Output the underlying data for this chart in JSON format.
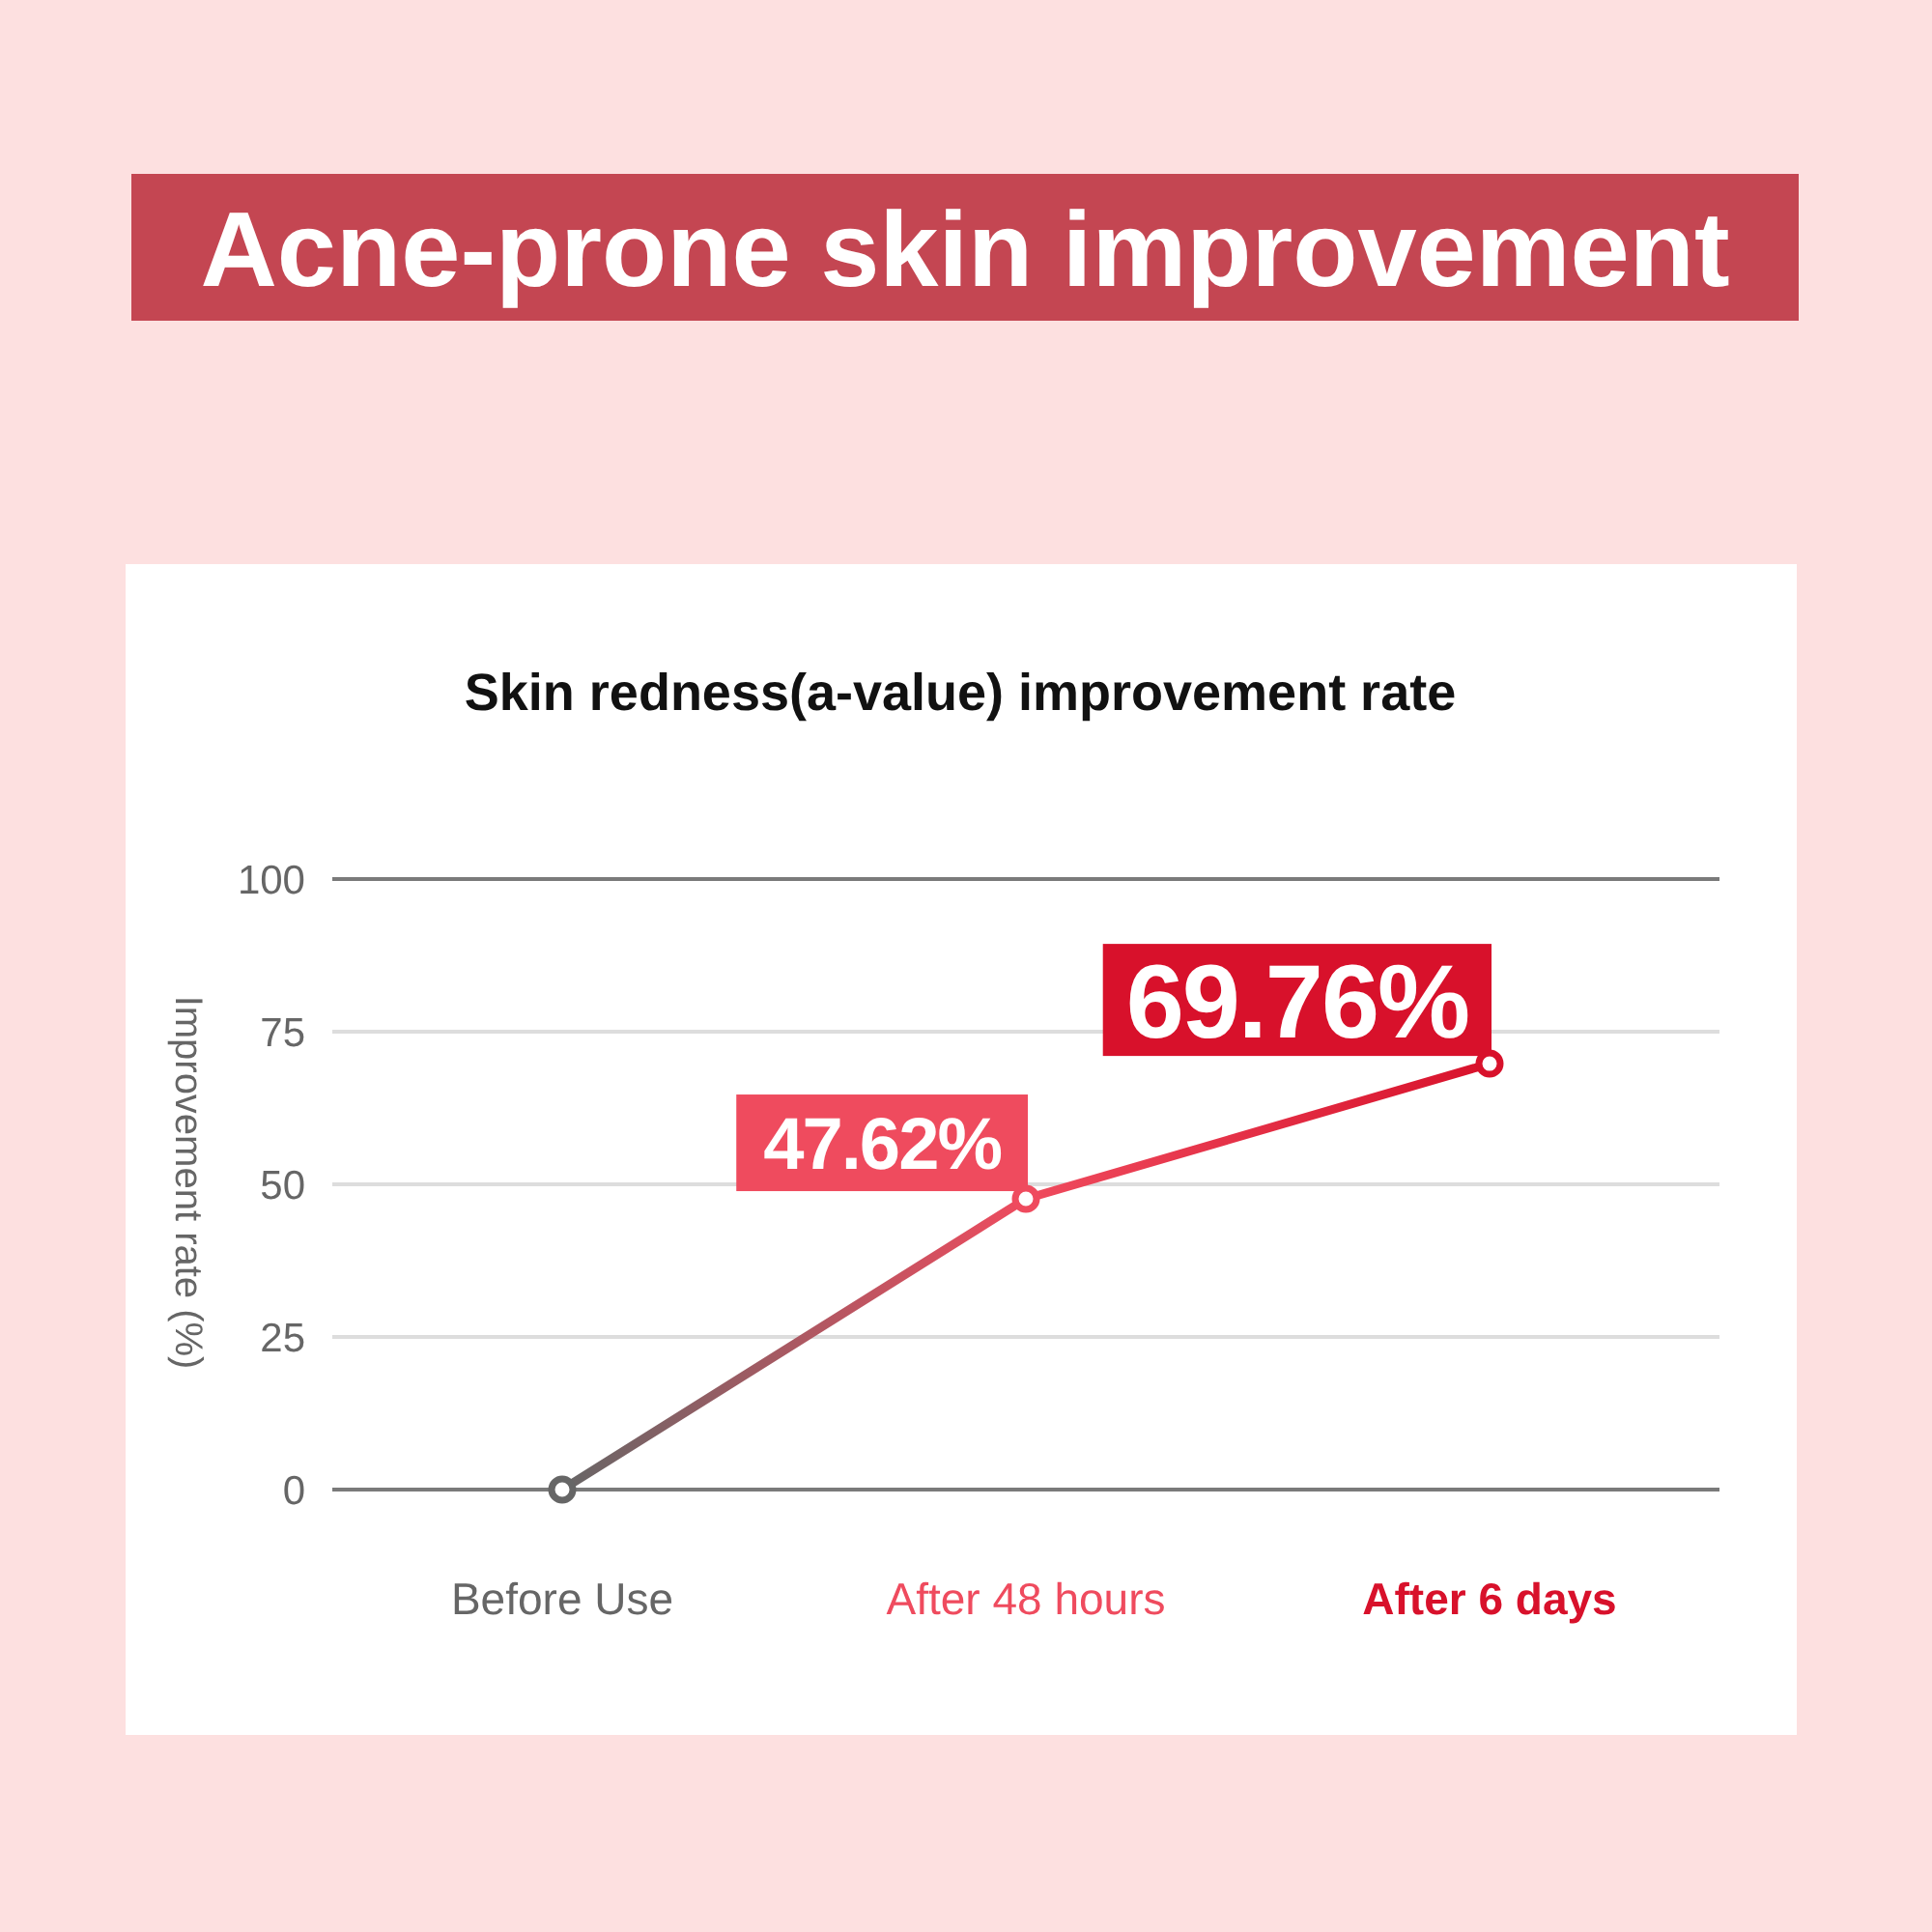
{
  "chart_data": {
    "type": "line",
    "title": "Acne-prone skin improvement",
    "subtitle": "Skin redness(a-value) improvement rate",
    "ylabel": "Improvement rate (%)",
    "categories": [
      "Before Use",
      "After 48 hours",
      "After 6 days"
    ],
    "values": [
      0,
      47.62,
      69.76
    ],
    "colors": [
      "#666666",
      "#ef4b5e",
      "#d8112b"
    ],
    "value_labels": [
      null,
      "47.62%",
      "69.76%"
    ],
    "ylim": [
      0,
      100
    ],
    "yticks": [
      0,
      25,
      50,
      75,
      100
    ],
    "grid": "y",
    "marker": "circle",
    "line_style": "solid"
  }
}
